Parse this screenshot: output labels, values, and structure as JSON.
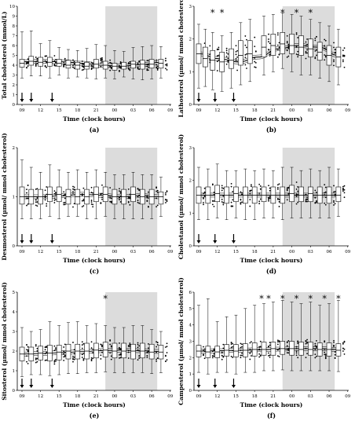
{
  "x_tick_labels": [
    "09",
    "12",
    "15",
    "18",
    "21",
    "00",
    "03",
    "06",
    "09"
  ],
  "x_axis_label": "Time (clock hours)",
  "shade_color": "#dcdcdc",
  "box_fill": "#ffffff",
  "chart_data": [
    {
      "id": "a",
      "panel_label": "(a)",
      "type": "box",
      "ylabel": "Total cholesterol (mmol/L)",
      "ylim": [
        0,
        10
      ],
      "yticks": [
        "0",
        "1",
        "2",
        "3",
        "4",
        "5",
        "6",
        "7",
        "8",
        "9",
        "10"
      ],
      "shaded_x": [
        9,
        14.6
      ],
      "arrows_x": [
        0,
        1,
        3.25
      ],
      "stars_x": [],
      "boxes": [
        {
          "x": 0,
          "min": 2.7,
          "q1": 3.8,
          "med": 4.2,
          "q3": 4.6,
          "max": 7.4
        },
        {
          "x": 1,
          "min": 2.9,
          "q1": 4.0,
          "med": 4.4,
          "q3": 4.9,
          "max": 7.5
        },
        {
          "x": 2,
          "min": 2.9,
          "q1": 3.9,
          "med": 4.3,
          "q3": 4.8,
          "max": 6.2
        },
        {
          "x": 3,
          "min": 2.7,
          "q1": 3.9,
          "med": 4.3,
          "q3": 4.8,
          "max": 6.5
        },
        {
          "x": 4,
          "min": 3.0,
          "q1": 3.9,
          "med": 4.2,
          "q3": 4.6,
          "max": 5.8
        },
        {
          "x": 5,
          "min": 2.7,
          "q1": 3.7,
          "med": 4.0,
          "q3": 4.5,
          "max": 5.6
        },
        {
          "x": 6,
          "min": 2.8,
          "q1": 3.6,
          "med": 4.0,
          "q3": 4.3,
          "max": 5.5
        },
        {
          "x": 7,
          "min": 2.7,
          "q1": 3.6,
          "med": 3.9,
          "q3": 4.3,
          "max": 5.7
        },
        {
          "x": 8,
          "min": 2.6,
          "q1": 3.7,
          "med": 4.1,
          "q3": 4.6,
          "max": 6.1
        },
        {
          "x": 9,
          "min": 2.7,
          "q1": 3.6,
          "med": 4.0,
          "q3": 4.4,
          "max": 6.0
        },
        {
          "x": 10,
          "min": 2.6,
          "q1": 3.5,
          "med": 3.9,
          "q3": 4.2,
          "max": 5.5
        },
        {
          "x": 11,
          "min": 2.8,
          "q1": 3.6,
          "med": 3.9,
          "q3": 4.3,
          "max": 5.4
        },
        {
          "x": 12,
          "min": 2.6,
          "q1": 3.7,
          "med": 4.1,
          "q3": 4.4,
          "max": 5.8
        },
        {
          "x": 13,
          "min": 2.5,
          "q1": 3.6,
          "med": 4.1,
          "q3": 4.5,
          "max": 5.9
        },
        {
          "x": 14,
          "min": 2.6,
          "q1": 3.7,
          "med": 4.1,
          "q3": 4.6,
          "max": 6.0
        },
        {
          "x": 15,
          "min": 2.7,
          "q1": 3.7,
          "med": 4.2,
          "q3": 4.6,
          "max": 5.9
        }
      ],
      "trend": [
        4.35,
        4.4,
        4.35,
        4.2,
        4.0,
        3.9,
        4.05,
        4.3
      ]
    },
    {
      "id": "b",
      "panel_label": "(b)",
      "type": "box",
      "ylabel": "Lathosterol (µmol/ mmol cholesterol)",
      "ylim": [
        0,
        3
      ],
      "yticks": [
        "0",
        "1",
        "2",
        "3"
      ],
      "shaded_x": [
        9,
        14.6
      ],
      "arrows_x": [
        0,
        1.75,
        3.75
      ],
      "stars_x": [
        1.5,
        2.5,
        9,
        10.5,
        12
      ],
      "boxes": [
        {
          "x": 0,
          "min": 0.5,
          "q1": 1.25,
          "med": 1.55,
          "q3": 1.85,
          "max": 2.45
        },
        {
          "x": 0.7,
          "min": 0.55,
          "q1": 1.15,
          "med": 1.4,
          "q3": 1.75,
          "max": 2.3
        },
        {
          "x": 1.5,
          "min": 0.45,
          "q1": 1.05,
          "med": 1.35,
          "q3": 1.65,
          "max": 2.2
        },
        {
          "x": 2.5,
          "min": 0.4,
          "q1": 1.0,
          "med": 1.3,
          "q3": 1.6,
          "max": 2.1
        },
        {
          "x": 3.5,
          "min": 0.5,
          "q1": 1.1,
          "med": 1.35,
          "q3": 1.7,
          "max": 2.2
        },
        {
          "x": 4.5,
          "min": 0.6,
          "q1": 1.2,
          "med": 1.5,
          "q3": 1.95,
          "max": 2.5
        },
        {
          "x": 5.5,
          "min": 0.7,
          "q1": 1.25,
          "med": 1.55,
          "q3": 1.95,
          "max": 2.6
        },
        {
          "x": 7,
          "min": 0.9,
          "q1": 1.45,
          "med": 1.75,
          "q3": 2.1,
          "max": 2.7
        },
        {
          "x": 8,
          "min": 1.0,
          "q1": 1.5,
          "med": 1.8,
          "q3": 2.15,
          "max": 2.75
        },
        {
          "x": 9,
          "min": 1.1,
          "q1": 1.55,
          "med": 1.85,
          "q3": 2.2,
          "max": 2.8
        },
        {
          "x": 10,
          "min": 1.0,
          "q1": 1.55,
          "med": 1.8,
          "q3": 2.15,
          "max": 2.75
        },
        {
          "x": 11,
          "min": 0.9,
          "q1": 1.5,
          "med": 1.75,
          "q3": 2.1,
          "max": 2.7
        },
        {
          "x": 12,
          "min": 0.9,
          "q1": 1.45,
          "med": 1.7,
          "q3": 2.0,
          "max": 2.6
        },
        {
          "x": 13,
          "min": 0.8,
          "q1": 1.35,
          "med": 1.6,
          "q3": 1.9,
          "max": 2.5
        },
        {
          "x": 14,
          "min": 0.7,
          "q1": 1.2,
          "med": 1.5,
          "q3": 1.8,
          "max": 2.4
        },
        {
          "x": 15,
          "min": 0.6,
          "q1": 1.15,
          "med": 1.45,
          "q3": 1.75,
          "max": 2.3
        }
      ],
      "trend": [
        1.55,
        1.4,
        1.3,
        1.45,
        1.7,
        1.8,
        1.75,
        1.5
      ]
    },
    {
      "id": "c",
      "panel_label": "(c)",
      "type": "box",
      "ylabel": "Desmosterol (µmol/ mmol cholesterol)",
      "ylim": [
        0,
        2
      ],
      "yticks": [
        "0",
        "1",
        "2"
      ],
      "shaded_x": [
        9,
        14.6
      ],
      "arrows_x": [
        0,
        1,
        3.25
      ],
      "stars_x": [],
      "boxes": [
        {
          "x": 0,
          "min": 0.55,
          "q1": 0.85,
          "med": 1.0,
          "q3": 1.2,
          "max": 1.75
        },
        {
          "x": 1,
          "min": 0.55,
          "q1": 0.85,
          "med": 1.0,
          "q3": 1.15,
          "max": 1.6
        },
        {
          "x": 2,
          "min": 0.55,
          "q1": 0.85,
          "med": 1.0,
          "q3": 1.15,
          "max": 1.5
        },
        {
          "x": 3,
          "min": 0.6,
          "q1": 0.9,
          "med": 1.05,
          "q3": 1.2,
          "max": 1.65
        },
        {
          "x": 4,
          "min": 0.55,
          "q1": 0.9,
          "med": 1.05,
          "q3": 1.2,
          "max": 1.55
        },
        {
          "x": 5,
          "min": 0.6,
          "q1": 0.85,
          "med": 1.0,
          "q3": 1.15,
          "max": 1.5
        },
        {
          "x": 6,
          "min": 0.6,
          "q1": 0.85,
          "med": 1.0,
          "q3": 1.15,
          "max": 1.55
        },
        {
          "x": 7,
          "min": 0.55,
          "q1": 0.85,
          "med": 1.0,
          "q3": 1.15,
          "max": 1.5
        },
        {
          "x": 8,
          "min": 0.55,
          "q1": 0.9,
          "med": 1.05,
          "q3": 1.2,
          "max": 1.55
        },
        {
          "x": 9,
          "min": 0.6,
          "q1": 0.9,
          "med": 1.05,
          "q3": 1.2,
          "max": 1.5
        },
        {
          "x": 10,
          "min": 0.55,
          "q1": 0.85,
          "med": 1.0,
          "q3": 1.15,
          "max": 1.45
        },
        {
          "x": 11,
          "min": 0.55,
          "q1": 0.85,
          "med": 1.0,
          "q3": 1.15,
          "max": 1.45
        },
        {
          "x": 12,
          "min": 0.55,
          "q1": 0.9,
          "med": 1.05,
          "q3": 1.2,
          "max": 1.5
        },
        {
          "x": 13,
          "min": 0.55,
          "q1": 0.85,
          "med": 1.0,
          "q3": 1.15,
          "max": 1.45
        },
        {
          "x": 14,
          "min": 0.55,
          "q1": 0.85,
          "med": 1.0,
          "q3": 1.15,
          "max": 1.45
        },
        {
          "x": 15,
          "min": 0.6,
          "q1": 0.85,
          "med": 1.0,
          "q3": 1.1,
          "max": 1.4
        }
      ],
      "trend": [
        1.0,
        1.0,
        1.02,
        1.05,
        1.03,
        1.0,
        1.02,
        1.0
      ]
    },
    {
      "id": "d",
      "panel_label": "(d)",
      "type": "box",
      "ylabel": "Cholestanol (µmol/ mmol cholesterol)",
      "ylim": [
        0,
        3
      ],
      "yticks": [
        "0",
        "1",
        "2",
        "3"
      ],
      "shaded_x": [
        9,
        14.6
      ],
      "arrows_x": [
        0,
        1.75,
        3.75
      ],
      "stars_x": [],
      "boxes": [
        {
          "x": 0,
          "min": 0.8,
          "q1": 1.3,
          "med": 1.55,
          "q3": 1.8,
          "max": 2.4
        },
        {
          "x": 1,
          "min": 0.8,
          "q1": 1.3,
          "med": 1.55,
          "q3": 1.8,
          "max": 2.35
        },
        {
          "x": 2,
          "min": 0.85,
          "q1": 1.35,
          "med": 1.6,
          "q3": 1.85,
          "max": 2.5
        },
        {
          "x": 3,
          "min": 0.8,
          "q1": 1.3,
          "med": 1.55,
          "q3": 1.8,
          "max": 2.3
        },
        {
          "x": 4,
          "min": 0.85,
          "q1": 1.35,
          "med": 1.6,
          "q3": 1.8,
          "max": 2.3
        },
        {
          "x": 5,
          "min": 0.8,
          "q1": 1.3,
          "med": 1.55,
          "q3": 1.8,
          "max": 2.35
        },
        {
          "x": 6,
          "min": 0.8,
          "q1": 1.3,
          "med": 1.55,
          "q3": 1.8,
          "max": 2.3
        },
        {
          "x": 7,
          "min": 0.85,
          "q1": 1.35,
          "med": 1.55,
          "q3": 1.8,
          "max": 2.35
        },
        {
          "x": 8,
          "min": 0.85,
          "q1": 1.3,
          "med": 1.55,
          "q3": 1.8,
          "max": 2.3
        },
        {
          "x": 9,
          "min": 0.8,
          "q1": 1.3,
          "med": 1.55,
          "q3": 1.8,
          "max": 2.4
        },
        {
          "x": 10,
          "min": 0.85,
          "q1": 1.35,
          "med": 1.6,
          "q3": 1.85,
          "max": 2.4
        },
        {
          "x": 11,
          "min": 0.85,
          "q1": 1.35,
          "med": 1.55,
          "q3": 1.8,
          "max": 2.3
        },
        {
          "x": 12,
          "min": 0.85,
          "q1": 1.35,
          "med": 1.6,
          "q3": 1.8,
          "max": 2.35
        },
        {
          "x": 13,
          "min": 0.85,
          "q1": 1.3,
          "med": 1.55,
          "q3": 1.8,
          "max": 2.3
        },
        {
          "x": 14,
          "min": 0.85,
          "q1": 1.3,
          "med": 1.55,
          "q3": 1.8,
          "max": 2.4
        },
        {
          "x": 15,
          "min": 0.9,
          "q1": 1.35,
          "med": 1.55,
          "q3": 1.8,
          "max": 2.35
        }
      ],
      "trend": [
        1.55,
        1.55,
        1.55,
        1.55,
        1.55,
        1.55,
        1.55,
        1.55
      ]
    },
    {
      "id": "e",
      "panel_label": "(e)",
      "type": "box",
      "ylabel": "Sitosterol (µmol/ mmol cholesterol)",
      "ylim": [
        0,
        5
      ],
      "yticks": [
        "0",
        "1",
        "2",
        "3",
        "4",
        "5"
      ],
      "shaded_x": [
        9,
        14.6
      ],
      "arrows_x": [
        0,
        1,
        3.25
      ],
      "stars_x": [
        9
      ],
      "boxes": [
        {
          "x": 0,
          "min": 0.7,
          "q1": 1.5,
          "med": 1.85,
          "q3": 2.2,
          "max": 3.2
        },
        {
          "x": 1,
          "min": 0.8,
          "q1": 1.5,
          "med": 1.85,
          "q3": 2.2,
          "max": 3.0
        },
        {
          "x": 2,
          "min": 0.8,
          "q1": 1.55,
          "med": 1.9,
          "q3": 2.25,
          "max": 3.1
        },
        {
          "x": 3,
          "min": 0.75,
          "q1": 1.5,
          "med": 1.9,
          "q3": 2.3,
          "max": 3.5
        },
        {
          "x": 4,
          "min": 0.8,
          "q1": 1.55,
          "med": 1.95,
          "q3": 2.3,
          "max": 3.3
        },
        {
          "x": 5,
          "min": 0.85,
          "q1": 1.6,
          "med": 2.0,
          "q3": 2.35,
          "max": 3.45
        },
        {
          "x": 6,
          "min": 0.85,
          "q1": 1.6,
          "med": 2.0,
          "q3": 2.35,
          "max": 3.5
        },
        {
          "x": 7,
          "min": 0.9,
          "q1": 1.6,
          "med": 2.0,
          "q3": 2.4,
          "max": 3.3
        },
        {
          "x": 8,
          "min": 0.9,
          "q1": 1.65,
          "med": 2.05,
          "q3": 2.4,
          "max": 3.4
        },
        {
          "x": 9,
          "min": 0.95,
          "q1": 1.7,
          "med": 2.05,
          "q3": 2.45,
          "max": 3.3
        },
        {
          "x": 10,
          "min": 0.9,
          "q1": 1.65,
          "med": 2.0,
          "q3": 2.4,
          "max": 3.2
        },
        {
          "x": 11,
          "min": 0.9,
          "q1": 1.65,
          "med": 2.0,
          "q3": 2.4,
          "max": 3.2
        },
        {
          "x": 12,
          "min": 0.9,
          "q1": 1.6,
          "med": 2.0,
          "q3": 2.35,
          "max": 3.3
        },
        {
          "x": 13,
          "min": 0.9,
          "q1": 1.65,
          "med": 2.0,
          "q3": 2.4,
          "max": 3.3
        },
        {
          "x": 14,
          "min": 0.85,
          "q1": 1.6,
          "med": 1.95,
          "q3": 2.35,
          "max": 3.1
        },
        {
          "x": 15,
          "min": 0.9,
          "q1": 1.6,
          "med": 1.95,
          "q3": 2.3,
          "max": 3.0
        }
      ],
      "trend": [
        1.85,
        1.88,
        1.92,
        1.97,
        2.02,
        2.05,
        2.02,
        1.98
      ]
    },
    {
      "id": "f",
      "panel_label": "(f)",
      "type": "box",
      "ylabel": "Campesterol (µmol/ mmol cholesterol)",
      "ylim": [
        0,
        6
      ],
      "yticks": [
        "0",
        "1",
        "2",
        "3",
        "4",
        "5",
        "6"
      ],
      "shaded_x": [
        9,
        14.6
      ],
      "arrows_x": [
        0,
        1.75,
        3.75
      ],
      "stars_x": [
        6.75,
        7.5,
        9,
        10.5,
        12,
        13.5,
        15
      ],
      "boxes": [
        {
          "x": 0,
          "min": 1.1,
          "q1": 2.05,
          "med": 2.4,
          "q3": 2.75,
          "max": 5.2
        },
        {
          "x": 1,
          "min": 1.0,
          "q1": 2.0,
          "med": 2.35,
          "q3": 2.7,
          "max": 5.6
        },
        {
          "x": 2,
          "min": 1.1,
          "q1": 2.0,
          "med": 2.35,
          "q3": 2.7,
          "max": 4.2
        },
        {
          "x": 3,
          "min": 1.1,
          "q1": 2.1,
          "med": 2.45,
          "q3": 2.8,
          "max": 4.5
        },
        {
          "x": 4,
          "min": 1.0,
          "q1": 2.05,
          "med": 2.4,
          "q3": 2.8,
          "max": 4.6
        },
        {
          "x": 5,
          "min": 1.1,
          "q1": 2.05,
          "med": 2.45,
          "q3": 2.85,
          "max": 5.0
        },
        {
          "x": 6,
          "min": 1.1,
          "q1": 2.1,
          "med": 2.5,
          "q3": 2.9,
          "max": 5.2
        },
        {
          "x": 7,
          "min": 1.2,
          "q1": 2.15,
          "med": 2.5,
          "q3": 2.95,
          "max": 5.3
        },
        {
          "x": 8,
          "min": 1.2,
          "q1": 2.15,
          "med": 2.55,
          "q3": 2.95,
          "max": 5.4
        },
        {
          "x": 9,
          "min": 1.25,
          "q1": 2.2,
          "med": 2.55,
          "q3": 3.0,
          "max": 5.5
        },
        {
          "x": 10,
          "min": 1.2,
          "q1": 2.15,
          "med": 2.55,
          "q3": 3.0,
          "max": 5.4
        },
        {
          "x": 11,
          "min": 1.2,
          "q1": 2.15,
          "med": 2.5,
          "q3": 2.95,
          "max": 5.3
        },
        {
          "x": 12,
          "min": 1.2,
          "q1": 2.15,
          "med": 2.5,
          "q3": 2.95,
          "max": 5.4
        },
        {
          "x": 13,
          "min": 1.2,
          "q1": 2.1,
          "med": 2.5,
          "q3": 2.9,
          "max": 5.2
        },
        {
          "x": 14,
          "min": 1.2,
          "q1": 2.1,
          "med": 2.5,
          "q3": 2.9,
          "max": 5.3
        },
        {
          "x": 15,
          "min": 1.15,
          "q1": 2.1,
          "med": 2.45,
          "q3": 2.85,
          "max": 5.5
        }
      ],
      "trend": [
        2.4,
        2.42,
        2.45,
        2.48,
        2.52,
        2.55,
        2.55,
        2.5
      ]
    }
  ]
}
